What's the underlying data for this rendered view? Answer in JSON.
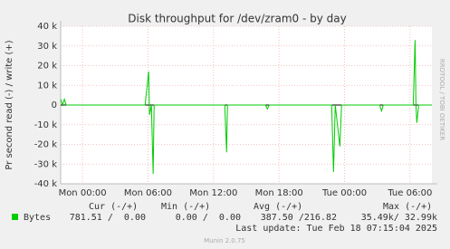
{
  "chart_data": {
    "type": "line",
    "title": "Disk throughput for /dev/zram0 - by day",
    "y_label": "Pr second read (-) / write (+)",
    "side_label": "RRDTOOL / TOBI OETIKER",
    "x": [
      -2.0,
      -1.83,
      -1.66,
      -1.49,
      5.73,
      6.06,
      6.14,
      6.31,
      6.47,
      6.56,
      13.03,
      13.2,
      13.28,
      16.76,
      16.93,
      17.1,
      22.82,
      22.99,
      23.15,
      23.57,
      23.73,
      27.22,
      27.39,
      27.55,
      30.29,
      30.46,
      30.54,
      30.62,
      30.79,
      32.0
    ],
    "series": [
      {
        "name": "Bytes",
        "color": "#00cc00",
        "values": [
          3000,
          0,
          3000,
          0,
          0,
          17000,
          -5000,
          0,
          -35000,
          0,
          0,
          -24000,
          0,
          0,
          -2000,
          0,
          0,
          -34000,
          0,
          -21000,
          0,
          0,
          -3000,
          0,
          0,
          33000,
          0,
          -9000,
          0,
          0
        ]
      }
    ],
    "xlim": [
      -2,
      32
    ],
    "xticks": [
      {
        "value": 0,
        "label": "Mon 00:00"
      },
      {
        "value": 6,
        "label": "Mon 06:00"
      },
      {
        "value": 12,
        "label": "Mon 12:00"
      },
      {
        "value": 18,
        "label": "Mon 18:00"
      },
      {
        "value": 24,
        "label": "Tue 00:00"
      },
      {
        "value": 30,
        "label": "Tue 06:00"
      }
    ],
    "ylim": [
      -40000,
      40000
    ],
    "yticks": [
      {
        "value": -40000,
        "label": "-40 k"
      },
      {
        "value": -30000,
        "label": "-30 k"
      },
      {
        "value": -20000,
        "label": "-20 k"
      },
      {
        "value": -10000,
        "label": "-10 k"
      },
      0,
      {
        "value": 10000,
        "label": "10 k"
      },
      {
        "value": 20000,
        "label": "20 k"
      },
      {
        "value": 30000,
        "label": "30 k"
      },
      {
        "value": 40000,
        "label": "40 k"
      }
    ],
    "grid": true,
    "legend_table": {
      "headers": [
        "Cur (-/+)",
        "Min (-/+)",
        "Avg (-/+)",
        "Max (-/+)"
      ],
      "cells": [
        "781.51 /  0.00",
        "0.00 /  0.00",
        "387.50 /216.82",
        "35.49k/ 32.99k"
      ]
    },
    "last_update": "Last update: Tue Feb 18 07:15:04 2025",
    "footer": "Munin 2.0.75"
  }
}
